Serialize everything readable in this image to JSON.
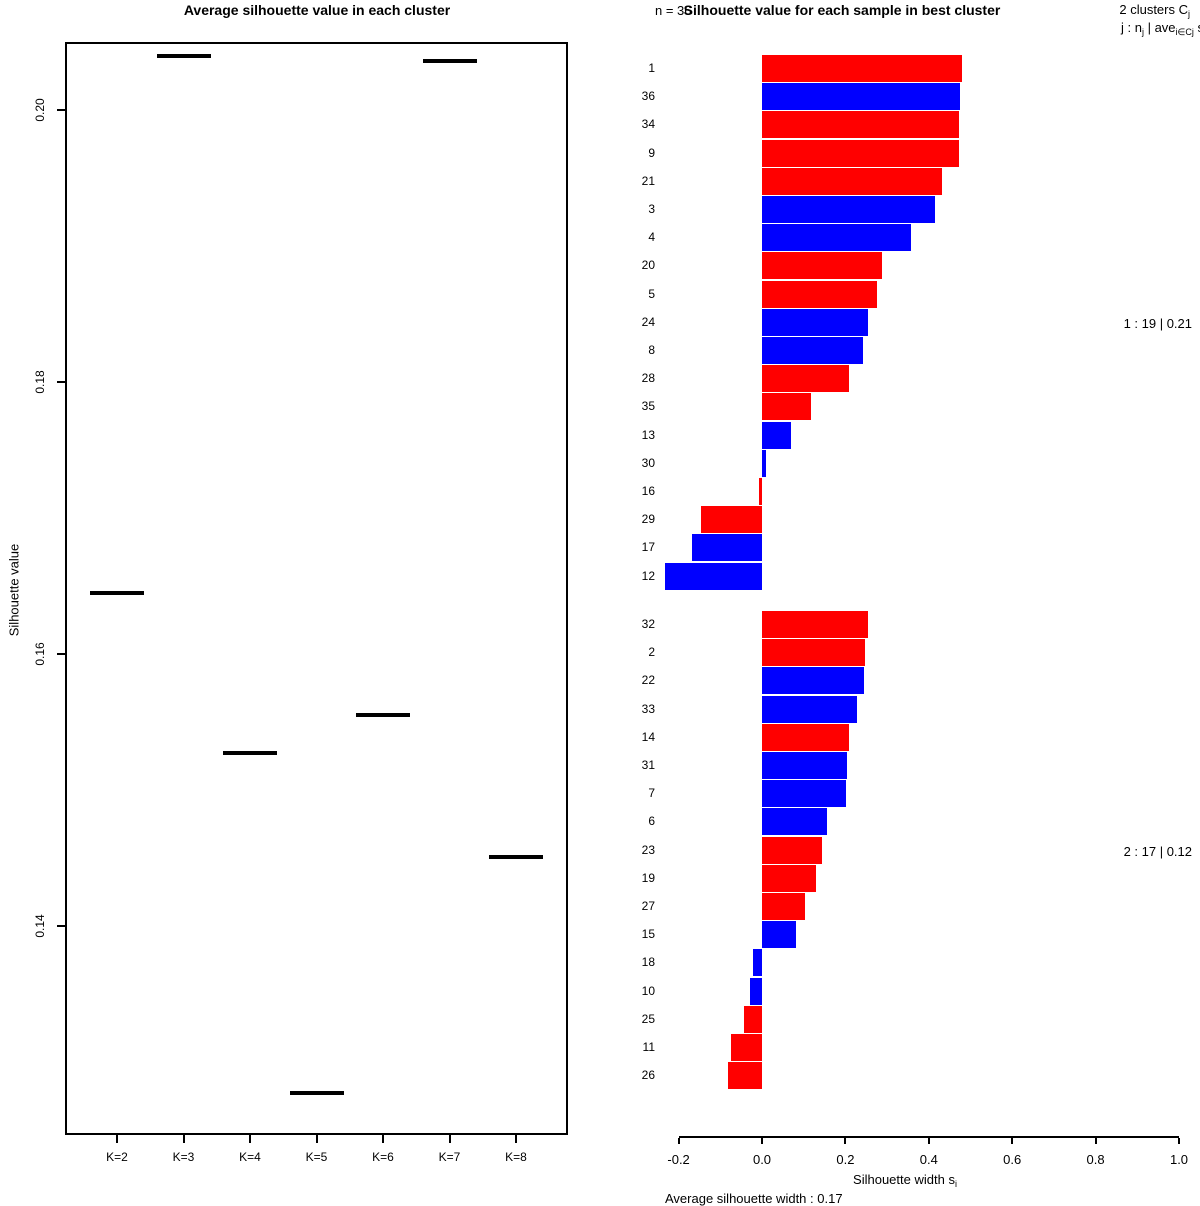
{
  "colors": {
    "bar_red": "#ff0000",
    "bar_blue": "#0000ff",
    "axis": "#000000"
  },
  "chart_data": [
    {
      "type": "line",
      "marker": "horizontal-segment",
      "title": "Average silhouette value in each cluster",
      "ylabel": "Silhouette value",
      "xlabel": "",
      "categories": [
        "K=2",
        "K=3",
        "K=4",
        "K=5",
        "K=6",
        "K=7",
        "K=8"
      ],
      "values": [
        0.1645,
        0.204,
        0.1527,
        0.1277,
        0.1555,
        0.2036,
        0.1451
      ],
      "y_tick_values": [
        0.2,
        0.18,
        0.16,
        0.14
      ],
      "y_tick_labels": [
        "0.20",
        "0.18",
        "0.16",
        "0.14"
      ],
      "ylim": [
        0.1265,
        0.2055
      ],
      "grid": false,
      "legend_position": "none"
    },
    {
      "type": "bar",
      "orientation": "horizontal",
      "title": "Silhouette value for each sample in best cluster",
      "n_label": "n = 36",
      "subtitle": "Average silhouette width : 0.17",
      "xlim": [
        -0.2,
        1.0
      ],
      "x_tick_values": [
        -0.2,
        0.0,
        0.2,
        0.4,
        0.6,
        0.8,
        1.0
      ],
      "x_tick_labels": [
        "-0.2",
        "0.0",
        "0.2",
        "0.4",
        "0.6",
        "0.8",
        "1.0"
      ],
      "xlabel_parts": [
        {
          "t": "Silhouette width s"
        },
        {
          "t": "i",
          "sub": true
        }
      ],
      "legend_line1_parts": [
        {
          "t": "2  clusters  C"
        },
        {
          "t": "j",
          "sub": true
        }
      ],
      "legend_line2_parts": [
        {
          "t": "j :  n"
        },
        {
          "t": "j",
          "sub": true
        },
        {
          "t": " | ave"
        },
        {
          "t": "i∈Cj",
          "sub": true
        },
        {
          "t": "  s"
        },
        {
          "t": "i",
          "sub": true
        }
      ],
      "clusters": [
        {
          "header": "1 :  19  |  0.21",
          "samples": [
            {
              "id": "1",
              "value": 0.48,
              "color": "red"
            },
            {
              "id": "36",
              "value": 0.474,
              "color": "blue"
            },
            {
              "id": "34",
              "value": 0.473,
              "color": "red"
            },
            {
              "id": "9",
              "value": 0.472,
              "color": "red"
            },
            {
              "id": "21",
              "value": 0.431,
              "color": "red"
            },
            {
              "id": "3",
              "value": 0.415,
              "color": "blue"
            },
            {
              "id": "4",
              "value": 0.357,
              "color": "blue"
            },
            {
              "id": "20",
              "value": 0.287,
              "color": "red"
            },
            {
              "id": "5",
              "value": 0.275,
              "color": "red"
            },
            {
              "id": "24",
              "value": 0.253,
              "color": "blue"
            },
            {
              "id": "8",
              "value": 0.242,
              "color": "blue"
            },
            {
              "id": "28",
              "value": 0.209,
              "color": "red"
            },
            {
              "id": "35",
              "value": 0.118,
              "color": "red"
            },
            {
              "id": "13",
              "value": 0.07,
              "color": "blue"
            },
            {
              "id": "30",
              "value": 0.009,
              "color": "blue"
            },
            {
              "id": "16",
              "value": -0.008,
              "color": "red"
            },
            {
              "id": "29",
              "value": -0.146,
              "color": "red"
            },
            {
              "id": "17",
              "value": -0.169,
              "color": "blue"
            },
            {
              "id": "12",
              "value": -0.233,
              "color": "blue"
            }
          ]
        },
        {
          "header": "2 :  17  |  0.12",
          "samples": [
            {
              "id": "32",
              "value": 0.254,
              "color": "red"
            },
            {
              "id": "2",
              "value": 0.246,
              "color": "red"
            },
            {
              "id": "22",
              "value": 0.245,
              "color": "blue"
            },
            {
              "id": "33",
              "value": 0.228,
              "color": "blue"
            },
            {
              "id": "14",
              "value": 0.209,
              "color": "red"
            },
            {
              "id": "31",
              "value": 0.203,
              "color": "blue"
            },
            {
              "id": "7",
              "value": 0.201,
              "color": "blue"
            },
            {
              "id": "6",
              "value": 0.156,
              "color": "blue"
            },
            {
              "id": "23",
              "value": 0.144,
              "color": "red"
            },
            {
              "id": "19",
              "value": 0.129,
              "color": "red"
            },
            {
              "id": "27",
              "value": 0.102,
              "color": "red"
            },
            {
              "id": "15",
              "value": 0.081,
              "color": "blue"
            },
            {
              "id": "18",
              "value": -0.021,
              "color": "blue"
            },
            {
              "id": "10",
              "value": -0.028,
              "color": "blue"
            },
            {
              "id": "25",
              "value": -0.042,
              "color": "red"
            },
            {
              "id": "11",
              "value": -0.074,
              "color": "red"
            },
            {
              "id": "26",
              "value": -0.082,
              "color": "red"
            }
          ]
        }
      ]
    }
  ]
}
